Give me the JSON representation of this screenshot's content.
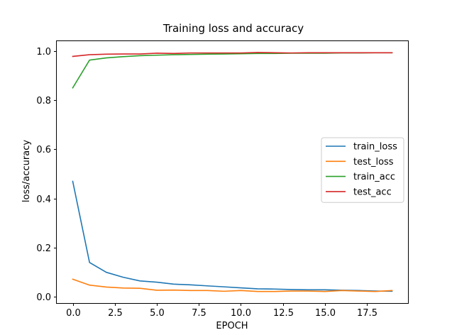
{
  "chart_data": {
    "type": "line",
    "title": "Training loss and accuracy",
    "xlabel": "EPOCH",
    "ylabel": "loss/accuracy",
    "xlim": [
      -0.95,
      19.95
    ],
    "ylim": [
      -0.025,
      1.04
    ],
    "grid": false,
    "legend_position": "center-right",
    "x": [
      0,
      1,
      2,
      3,
      4,
      5,
      6,
      7,
      8,
      9,
      10,
      11,
      12,
      13,
      14,
      15,
      16,
      17,
      18,
      19
    ],
    "xticks": [
      {
        "value": 0.0,
        "label": "0.0"
      },
      {
        "value": 2.5,
        "label": "2.5"
      },
      {
        "value": 5.0,
        "label": "5.0"
      },
      {
        "value": 7.5,
        "label": "7.5"
      },
      {
        "value": 10.0,
        "label": "10.0"
      },
      {
        "value": 12.5,
        "label": "12.5"
      },
      {
        "value": 15.0,
        "label": "15.0"
      },
      {
        "value": 17.5,
        "label": "17.5"
      }
    ],
    "yticks": [
      {
        "value": 0.0,
        "label": "0.0"
      },
      {
        "value": 0.2,
        "label": "0.2"
      },
      {
        "value": 0.4,
        "label": "0.4"
      },
      {
        "value": 0.6,
        "label": "0.6"
      },
      {
        "value": 0.8,
        "label": "0.8"
      },
      {
        "value": 1.0,
        "label": "1.0"
      }
    ],
    "series": [
      {
        "name": "train_loss",
        "color": "#1f77b4",
        "values": [
          0.47,
          0.14,
          0.1,
          0.08,
          0.065,
          0.06,
          0.052,
          0.049,
          0.045,
          0.041,
          0.037,
          0.033,
          0.032,
          0.03,
          0.029,
          0.029,
          0.027,
          0.026,
          0.024,
          0.023
        ]
      },
      {
        "name": "test_loss",
        "color": "#ff7f0e",
        "values": [
          0.072,
          0.048,
          0.04,
          0.036,
          0.035,
          0.027,
          0.028,
          0.026,
          0.026,
          0.023,
          0.026,
          0.022,
          0.022,
          0.024,
          0.024,
          0.022,
          0.026,
          0.024,
          0.022,
          0.026
        ]
      },
      {
        "name": "train_acc",
        "color": "#2ca02c",
        "values": [
          0.85,
          0.963,
          0.972,
          0.977,
          0.981,
          0.983,
          0.985,
          0.986,
          0.987,
          0.988,
          0.989,
          0.99,
          0.99,
          0.991,
          0.991,
          0.991,
          0.992,
          0.992,
          0.993,
          0.993
        ]
      },
      {
        "name": "test_acc",
        "color": "#d62728",
        "values": [
          0.978,
          0.985,
          0.987,
          0.988,
          0.988,
          0.991,
          0.99,
          0.992,
          0.992,
          0.992,
          0.992,
          0.994,
          0.993,
          0.992,
          0.993,
          0.993,
          0.993,
          0.993,
          0.993,
          0.993
        ]
      }
    ]
  }
}
